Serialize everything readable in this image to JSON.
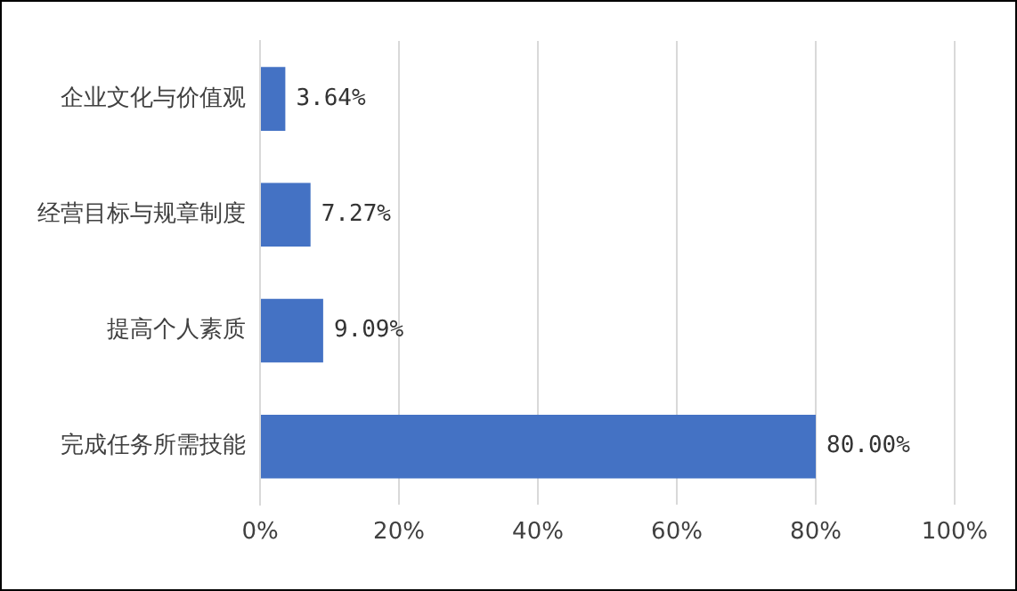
{
  "chart_data": {
    "type": "bar",
    "orientation": "horizontal",
    "categories": [
      "企业文化与价值观",
      "经营目标与规章制度",
      "提高个人素质",
      "完成任务所需技能"
    ],
    "values": [
      3.64,
      7.27,
      9.09,
      80.0
    ],
    "value_labels": [
      "3.64%",
      "7.27%",
      "9.09%",
      "80.00%"
    ],
    "color": "#4472c4",
    "xlim": [
      0,
      100
    ],
    "xticks": [
      {
        "value": 0,
        "label": "0%"
      },
      {
        "value": 20,
        "label": "20%"
      },
      {
        "value": 40,
        "label": "40%"
      },
      {
        "value": 60,
        "label": "60%"
      },
      {
        "value": 80,
        "label": "80%"
      },
      {
        "value": 100,
        "label": "100%"
      }
    ],
    "grid": "x",
    "legend": false
  }
}
